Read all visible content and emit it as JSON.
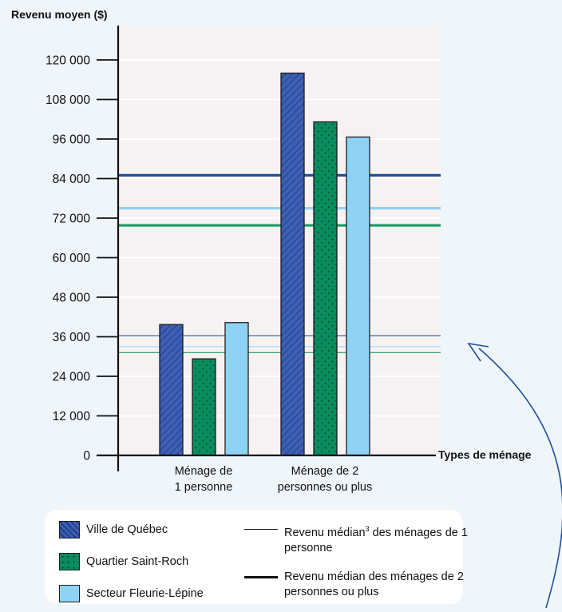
{
  "chart_data": {
    "type": "bar",
    "ylabel": "Revenu moyen ($)",
    "xlabel": "Types de ménage",
    "ylim": [
      0,
      120000
    ],
    "yticks": [
      "0",
      "12 000",
      "24 000",
      "36 000",
      "48 000",
      "60 000",
      "72 000",
      "84 000",
      "96 000",
      "108 000",
      "120 000"
    ],
    "categories": [
      [
        "Ménage de",
        "1 personne"
      ],
      [
        "Ménage de 2",
        "personnes ou plus"
      ]
    ],
    "series": [
      {
        "name": "Ville de Québec",
        "values": [
          39700,
          116000
        ],
        "color": "#3f5fb4",
        "pattern": "hatch"
      },
      {
        "name": "Quartier Saint-Roch",
        "values": [
          29300,
          101200
        ],
        "color": "#0a8c5e",
        "pattern": "dots"
      },
      {
        "name": "Secteur Fleurie-Lépine",
        "values": [
          40300,
          96600
        ],
        "color": "#8fd3f4",
        "pattern": "solid"
      }
    ],
    "reference_lines": [
      {
        "series": "Ville de Québec",
        "household": "1 personne",
        "value": 36300,
        "color": "#1c4f9c",
        "weight": "thin"
      },
      {
        "series": "Secteur Fleurie-Lépine",
        "household": "1 personne",
        "value": 33000,
        "color": "#8fd3f4",
        "weight": "thin"
      },
      {
        "series": "Quartier Saint-Roch",
        "household": "1 personne",
        "value": 31200,
        "color": "#1a9a63",
        "weight": "thin"
      },
      {
        "series": "Ville de Québec",
        "household": "2 personnes ou plus",
        "value": 85000,
        "color": "#1c4f9c",
        "weight": "thick"
      },
      {
        "series": "Secteur Fleurie-Lépine",
        "household": "2 personnes ou plus",
        "value": 75000,
        "color": "#8fd3f4",
        "weight": "thick"
      },
      {
        "series": "Quartier Saint-Roch",
        "household": "2 personnes ou plus",
        "value": 69800,
        "color": "#1a9a63",
        "weight": "thick"
      }
    ],
    "grid": true
  },
  "legend": {
    "series": [
      "Ville de Québec",
      "Quartier Saint-Roch",
      "Secteur Fleurie-Lépine"
    ],
    "thin_line_label_a": "Revenu médian",
    "thin_line_sup": "3",
    "thin_line_label_b": " des ménages de 1 personne",
    "thick_line_label": "Revenu médian des ménages de 2 personnes ou plus"
  }
}
